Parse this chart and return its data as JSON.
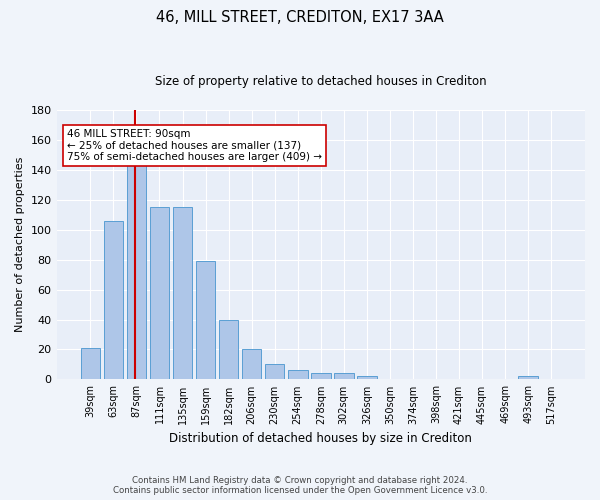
{
  "title1": "46, MILL STREET, CREDITON, EX17 3AA",
  "title2": "Size of property relative to detached houses in Crediton",
  "xlabel": "Distribution of detached houses by size in Crediton",
  "ylabel": "Number of detached properties",
  "bar_labels": [
    "39sqm",
    "63sqm",
    "87sqm",
    "111sqm",
    "135sqm",
    "159sqm",
    "182sqm",
    "206sqm",
    "230sqm",
    "254sqm",
    "278sqm",
    "302sqm",
    "326sqm",
    "350sqm",
    "374sqm",
    "398sqm",
    "421sqm",
    "445sqm",
    "469sqm",
    "493sqm",
    "517sqm"
  ],
  "bar_values": [
    21,
    106,
    146,
    115,
    115,
    79,
    40,
    20,
    10,
    6,
    4,
    4,
    2,
    0,
    0,
    0,
    0,
    0,
    0,
    2,
    0
  ],
  "bar_color": "#aec6e8",
  "bar_edge_color": "#5a9fd4",
  "vline_color": "#cc0000",
  "vline_index": 2.0,
  "ylim": [
    0,
    180
  ],
  "yticks": [
    0,
    20,
    40,
    60,
    80,
    100,
    120,
    140,
    160,
    180
  ],
  "annotation_text": "46 MILL STREET: 90sqm\n← 25% of detached houses are smaller (137)\n75% of semi-detached houses are larger (409) →",
  "annotation_box_color": "#ffffff",
  "annotation_box_edge": "#cc0000",
  "footer_line1": "Contains HM Land Registry data © Crown copyright and database right 2024.",
  "footer_line2": "Contains public sector information licensed under the Open Government Licence v3.0.",
  "bg_color": "#f0f4fa",
  "plot_bg_color": "#e8eef8"
}
